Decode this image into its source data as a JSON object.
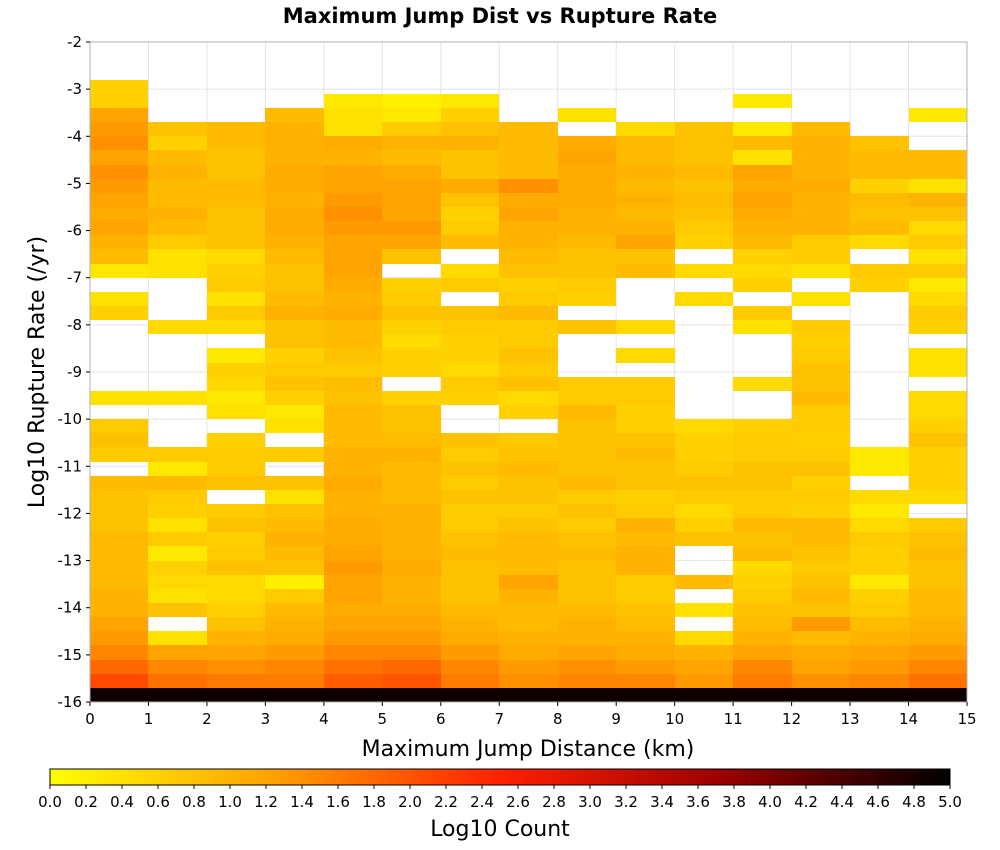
{
  "chart_data": {
    "type": "heatmap",
    "title": "Maximum Jump Dist vs Rupture Rate",
    "xlabel": "Maximum Jump Distance (km)",
    "ylabel": "Log10 Rupture Rate (/yr)",
    "xlim": [
      0,
      15
    ],
    "ylim": [
      -16,
      -2
    ],
    "x_ticks": [
      "0",
      "1",
      "2",
      "3",
      "4",
      "5",
      "6",
      "7",
      "8",
      "9",
      "10",
      "11",
      "12",
      "13",
      "14",
      "15"
    ],
    "y_ticks": [
      "-2",
      "-3",
      "-4",
      "-5",
      "-6",
      "-7",
      "-8",
      "-9",
      "-10",
      "-11",
      "-12",
      "-13",
      "-14",
      "-15",
      "-16"
    ],
    "x_bin_width": 1,
    "y_bin_width": 0.3,
    "grid": true,
    "colorbar": {
      "label": "Log10 Count",
      "min": 0.0,
      "max": 5.0,
      "ticks": [
        "0.0",
        "0.2",
        "0.4",
        "0.6",
        "0.8",
        "1.0",
        "1.2",
        "1.4",
        "1.6",
        "1.8",
        "2.0",
        "2.2",
        "2.4",
        "2.6",
        "2.8",
        "3.0",
        "3.2",
        "3.4",
        "3.6",
        "3.8",
        "4.0",
        "4.2",
        "4.4",
        "4.6",
        "4.8",
        "5.0"
      ],
      "colors": [
        "#ffff00",
        "#ffa000",
        "#ff2000",
        "#990000",
        "#000000"
      ]
    },
    "y_bins_start": [
      -16.0,
      -15.7,
      -15.4,
      -15.1,
      -14.8,
      -14.5,
      -14.2,
      -13.9,
      -13.6,
      -13.3,
      -13.0,
      -12.7,
      -12.4,
      -12.1,
      -11.8,
      -11.5,
      -11.2,
      -10.9,
      -10.6,
      -10.3,
      -10.0,
      -9.7,
      -9.4,
      -9.1,
      -8.8,
      -8.5,
      -8.2,
      -7.9,
      -7.6,
      -7.3,
      -7.0,
      -6.7,
      -6.4,
      -6.1,
      -5.8,
      -5.5,
      -5.2,
      -4.9,
      -4.6,
      -4.3,
      -4.0,
      -3.7,
      -3.4,
      -3.1
    ],
    "values": [
      [
        4.9,
        4.9,
        4.9,
        4.9,
        4.9,
        4.9,
        4.9,
        4.9,
        4.9,
        4.9,
        4.9,
        4.9,
        4.9,
        4.9,
        4.9
      ],
      [
        2.1,
        1.7,
        1.6,
        1.6,
        1.9,
        2.0,
        1.6,
        1.4,
        1.5,
        1.5,
        1.3,
        1.6,
        1.4,
        1.5,
        1.7
      ],
      [
        1.8,
        1.5,
        1.4,
        1.5,
        1.7,
        1.8,
        1.5,
        1.3,
        1.4,
        1.3,
        1.2,
        1.5,
        1.2,
        1.3,
        1.5
      ],
      [
        1.5,
        1.2,
        1.2,
        1.3,
        1.5,
        1.5,
        1.3,
        1.1,
        1.2,
        1.1,
        1.0,
        1.2,
        1.1,
        1.2,
        1.3
      ],
      [
        1.3,
        0.4,
        1.0,
        1.1,
        1.3,
        1.3,
        1.1,
        1.0,
        1.0,
        1.0,
        0.5,
        1.0,
        0.9,
        1.0,
        1.1
      ],
      [
        1.2,
        null,
        0.8,
        1.0,
        1.2,
        1.2,
        1.0,
        0.9,
        1.0,
        0.9,
        null,
        0.9,
        1.3,
        0.9,
        1.0
      ],
      [
        1.0,
        0.8,
        0.6,
        0.9,
        1.1,
        1.1,
        0.9,
        0.9,
        0.9,
        0.8,
        0.4,
        0.8,
        0.8,
        0.7,
        0.9
      ],
      [
        1.0,
        0.4,
        0.5,
        0.7,
        1.2,
        1.0,
        0.8,
        1.0,
        0.8,
        0.7,
        null,
        0.7,
        0.9,
        0.6,
        0.9
      ],
      [
        0.9,
        0.5,
        0.5,
        0.2,
        1.2,
        1.0,
        0.8,
        1.2,
        0.8,
        0.7,
        0.9,
        0.6,
        0.8,
        0.3,
        0.8
      ],
      [
        0.9,
        0.6,
        0.8,
        0.8,
        1.3,
        1.1,
        0.8,
        0.9,
        0.8,
        1.0,
        null,
        0.5,
        0.7,
        0.6,
        0.8
      ],
      [
        0.9,
        0.3,
        0.7,
        0.9,
        1.2,
        1.0,
        0.9,
        0.9,
        0.9,
        1.0,
        null,
        0.9,
        0.8,
        0.6,
        0.9
      ],
      [
        0.9,
        0.7,
        0.6,
        1.0,
        1.1,
        1.0,
        0.8,
        0.9,
        0.8,
        0.9,
        0.8,
        0.8,
        0.9,
        0.7,
        0.8
      ],
      [
        0.8,
        0.4,
        0.8,
        0.9,
        1.1,
        1.0,
        0.7,
        0.8,
        0.7,
        1.0,
        0.6,
        0.9,
        0.9,
        0.5,
        0.7
      ],
      [
        0.8,
        0.6,
        0.7,
        0.8,
        1.0,
        1.0,
        0.7,
        0.7,
        0.8,
        0.7,
        0.5,
        0.7,
        0.6,
        0.3,
        null
      ],
      [
        0.8,
        0.7,
        null,
        0.4,
        1.0,
        0.9,
        0.8,
        0.8,
        0.7,
        0.6,
        0.7,
        0.7,
        0.7,
        0.5,
        0.5
      ],
      [
        0.9,
        0.9,
        0.8,
        0.8,
        1.1,
        0.9,
        0.7,
        0.8,
        0.9,
        0.8,
        0.8,
        0.8,
        0.6,
        null,
        0.6
      ],
      [
        null,
        0.3,
        0.7,
        null,
        1.0,
        0.9,
        0.8,
        0.9,
        0.8,
        0.8,
        0.7,
        0.8,
        0.8,
        0.3,
        0.6
      ],
      [
        0.7,
        0.7,
        0.7,
        0.7,
        1.0,
        1.0,
        0.7,
        0.8,
        0.8,
        0.9,
        0.6,
        0.7,
        0.7,
        0.3,
        0.6
      ],
      [
        0.8,
        null,
        0.6,
        null,
        0.9,
        0.9,
        0.8,
        0.7,
        0.8,
        0.8,
        0.6,
        0.7,
        0.6,
        null,
        0.8
      ],
      [
        0.7,
        null,
        null,
        0.4,
        0.9,
        0.8,
        null,
        null,
        0.8,
        0.6,
        0.5,
        0.6,
        0.7,
        null,
        0.6
      ],
      [
        null,
        null,
        0.4,
        0.3,
        0.9,
        0.8,
        null,
        0.6,
        0.9,
        0.6,
        null,
        null,
        0.7,
        null,
        0.5
      ],
      [
        0.4,
        0.4,
        0.3,
        0.6,
        0.8,
        0.6,
        0.6,
        0.5,
        0.7,
        0.7,
        null,
        null,
        0.9,
        null,
        0.5
      ],
      [
        null,
        null,
        0.5,
        0.8,
        0.9,
        null,
        0.7,
        0.8,
        0.7,
        0.7,
        null,
        0.5,
        0.8,
        null,
        null
      ],
      [
        null,
        null,
        0.6,
        0.7,
        0.7,
        0.6,
        0.5,
        0.7,
        null,
        null,
        null,
        null,
        0.8,
        null,
        0.4
      ],
      [
        null,
        null,
        0.3,
        0.6,
        0.8,
        0.6,
        0.6,
        0.8,
        null,
        0.5,
        null,
        null,
        0.7,
        null,
        0.4
      ],
      [
        null,
        null,
        null,
        0.8,
        0.9,
        0.5,
        0.6,
        0.7,
        null,
        null,
        null,
        null,
        0.6,
        null,
        null
      ],
      [
        null,
        0.5,
        0.5,
        0.8,
        0.9,
        0.6,
        0.7,
        0.7,
        0.8,
        0.5,
        null,
        0.4,
        0.7,
        null,
        0.6
      ],
      [
        0.6,
        null,
        0.7,
        1.0,
        1.1,
        0.8,
        0.8,
        0.9,
        null,
        null,
        null,
        0.7,
        null,
        null,
        0.7
      ],
      [
        0.4,
        null,
        0.4,
        0.9,
        1.0,
        0.7,
        null,
        0.7,
        0.6,
        null,
        0.5,
        null,
        0.4,
        null,
        0.5
      ],
      [
        null,
        null,
        0.7,
        0.8,
        1.1,
        0.6,
        0.7,
        0.6,
        0.7,
        null,
        null,
        0.6,
        null,
        0.6,
        0.3
      ],
      [
        0.3,
        0.4,
        0.6,
        0.8,
        1.2,
        null,
        0.5,
        0.8,
        0.8,
        0.9,
        0.5,
        0.5,
        0.4,
        0.7,
        0.7
      ],
      [
        0.9,
        0.4,
        0.5,
        0.9,
        1.2,
        0.8,
        null,
        0.9,
        0.8,
        0.8,
        null,
        0.6,
        0.7,
        null,
        0.4
      ],
      [
        1.0,
        0.7,
        0.8,
        1.0,
        1.2,
        1.2,
        0.9,
        1.0,
        0.9,
        1.2,
        0.6,
        0.9,
        0.7,
        0.5,
        0.7
      ],
      [
        1.2,
        0.9,
        0.8,
        1.1,
        1.3,
        1.3,
        0.7,
        1.0,
        1.0,
        1.0,
        0.7,
        1.0,
        1.0,
        0.9,
        0.5
      ],
      [
        1.1,
        1.0,
        0.8,
        1.1,
        1.4,
        1.2,
        0.6,
        1.2,
        1.0,
        0.9,
        0.8,
        1.1,
        1.0,
        0.8,
        0.8
      ],
      [
        1.2,
        0.9,
        0.9,
        1.0,
        1.3,
        1.2,
        0.8,
        1.1,
        1.1,
        1.0,
        0.9,
        1.2,
        1.0,
        0.9,
        1.0
      ],
      [
        1.3,
        0.9,
        0.9,
        1.1,
        1.2,
        1.2,
        1.1,
        1.4,
        1.1,
        0.9,
        0.8,
        1.1,
        1.1,
        0.6,
        0.4
      ],
      [
        1.4,
        1.0,
        0.8,
        1.1,
        1.2,
        1.1,
        0.8,
        0.9,
        1.1,
        1.0,
        0.9,
        1.2,
        1.0,
        0.9,
        0.9
      ],
      [
        1.2,
        0.9,
        0.8,
        1.0,
        1.0,
        0.9,
        0.8,
        0.9,
        1.2,
        0.9,
        0.8,
        0.4,
        1.0,
        0.9,
        0.9
      ],
      [
        1.4,
        0.6,
        0.9,
        1.0,
        1.1,
        1.0,
        1.0,
        0.9,
        1.1,
        0.9,
        0.8,
        0.9,
        1.0,
        0.8,
        null
      ],
      [
        1.3,
        0.8,
        0.9,
        1.0,
        0.4,
        0.7,
        0.8,
        0.9,
        null,
        0.5,
        0.8,
        0.3,
        0.9,
        null,
        null
      ],
      [
        1.2,
        null,
        null,
        0.9,
        0.4,
        0.3,
        0.6,
        null,
        0.4,
        null,
        null,
        null,
        null,
        null,
        0.3
      ],
      [
        0.6,
        null,
        null,
        null,
        0.3,
        0.2,
        0.3,
        null,
        null,
        null,
        null,
        0.3,
        null,
        null,
        null
      ],
      [
        0.6,
        null,
        null,
        null,
        null,
        null,
        null,
        null,
        null,
        null,
        null,
        null,
        null,
        null,
        null
      ]
    ]
  }
}
